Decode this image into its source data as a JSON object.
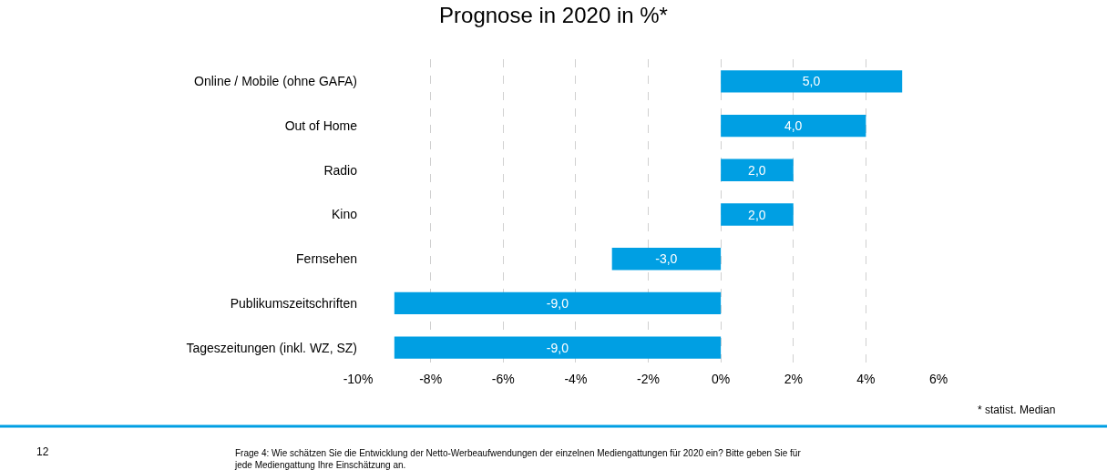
{
  "chart_data": {
    "type": "bar",
    "orientation": "horizontal",
    "title": "Prognose in 2020 in %*",
    "categories": [
      "Online / Mobile (ohne GAFA)",
      "Out of Home",
      "Radio",
      "Kino",
      "Fernsehen",
      "Publikumszeitschriften",
      "Tageszeitungen (inkl. WZ, SZ)"
    ],
    "values": [
      5.0,
      4.0,
      2.0,
      2.0,
      -3.0,
      -9.0,
      -9.0
    ],
    "value_labels": [
      "5,0",
      "4,0",
      "2,0",
      "2,0",
      "-3,0",
      "-9,0",
      "-9,0"
    ],
    "color": "#009fe3",
    "xlim": [
      -10,
      6
    ],
    "xticks": [
      {
        "value": -10,
        "label": "-10%"
      },
      {
        "value": -8,
        "label": "-8%"
      },
      {
        "value": -6,
        "label": "-6%"
      },
      {
        "value": -4,
        "label": "-4%"
      },
      {
        "value": -2,
        "label": "-2%"
      },
      {
        "value": 0,
        "label": "0%"
      },
      {
        "value": 2,
        "label": "2%"
      },
      {
        "value": 4,
        "label": "4%"
      },
      {
        "value": 6,
        "label": "6%"
      }
    ],
    "grid": "x",
    "legend": false,
    "annotations": [
      "* statist. Median",
      "Frage 4: Wie schätzen Sie die Entwicklung der Netto-Werbeaufwendungen der einzelnen Mediengattungen für 2020 ein? Bitte geben Sie für\njede Mediengattung Ihre Einschätzung an.",
      "12"
    ]
  }
}
